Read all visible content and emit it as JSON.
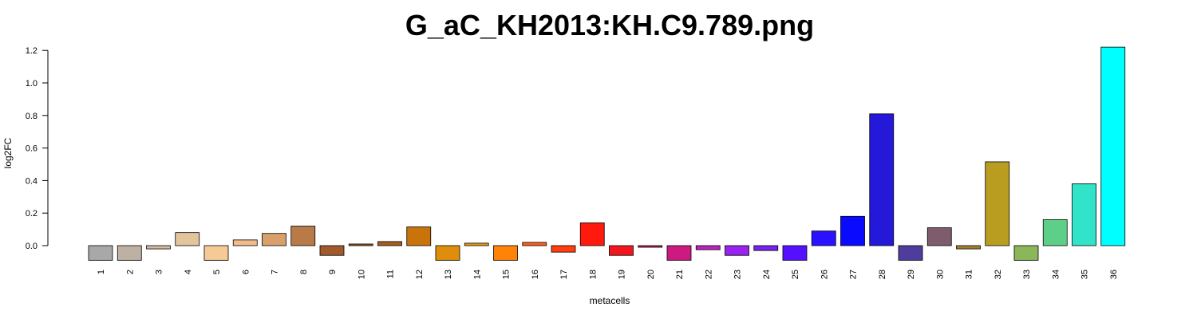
{
  "chart_data": {
    "type": "bar",
    "title": "G_aC_KH2013:KH.C9.789.png",
    "xlabel": "metacells",
    "ylabel": "log2FC",
    "ylim": [
      -0.09,
      1.22
    ],
    "yticks": [
      "0.0",
      "0.2",
      "0.4",
      "0.6",
      "0.8",
      "1.0",
      "1.2"
    ],
    "grid": false,
    "legend": "none",
    "categories": [
      "1",
      "2",
      "3",
      "4",
      "5",
      "6",
      "7",
      "8",
      "9",
      "10",
      "11",
      "12",
      "13",
      "14",
      "15",
      "16",
      "17",
      "18",
      "19",
      "20",
      "21",
      "22",
      "23",
      "24",
      "25",
      "26",
      "27",
      "28",
      "29",
      "30",
      "31",
      "32",
      "33",
      "34",
      "35",
      "36"
    ],
    "values": [
      -0.09,
      -0.09,
      -0.02,
      0.08,
      -0.09,
      0.035,
      0.075,
      0.12,
      -0.06,
      0.01,
      0.025,
      0.115,
      -0.09,
      0.015,
      -0.09,
      0.02,
      -0.04,
      0.14,
      -0.06,
      -0.01,
      -0.09,
      -0.025,
      -0.06,
      -0.03,
      -0.09,
      0.09,
      0.18,
      0.81,
      -0.09,
      0.11,
      -0.02,
      0.515,
      -0.09,
      0.16,
      0.38,
      1.22
    ],
    "colors": [
      "#a8a8a8",
      "#bdb1a4",
      "#d2bb9e",
      "#e3c59d",
      "#f6ca97",
      "#f2bc8a",
      "#d8a06a",
      "#b87a48",
      "#a05a2c",
      "#9a5a26",
      "#a95e1c",
      "#c8740b",
      "#e08d0c",
      "#eb9c10",
      "#ff8308",
      "#ff5e1a",
      "#ff3d0d",
      "#ff1a0d",
      "#f2151e",
      "#cc1f4a",
      "#cc1a80",
      "#bb22bf",
      "#9922ee",
      "#7722ee",
      "#5511ff",
      "#2a11ff",
      "#0a0aff",
      "#2418d9",
      "#503c9d",
      "#7f5c6c",
      "#a57e2c",
      "#b89d21",
      "#8cb65a",
      "#5ecf89",
      "#31e3c9",
      "#00ffff"
    ]
  }
}
